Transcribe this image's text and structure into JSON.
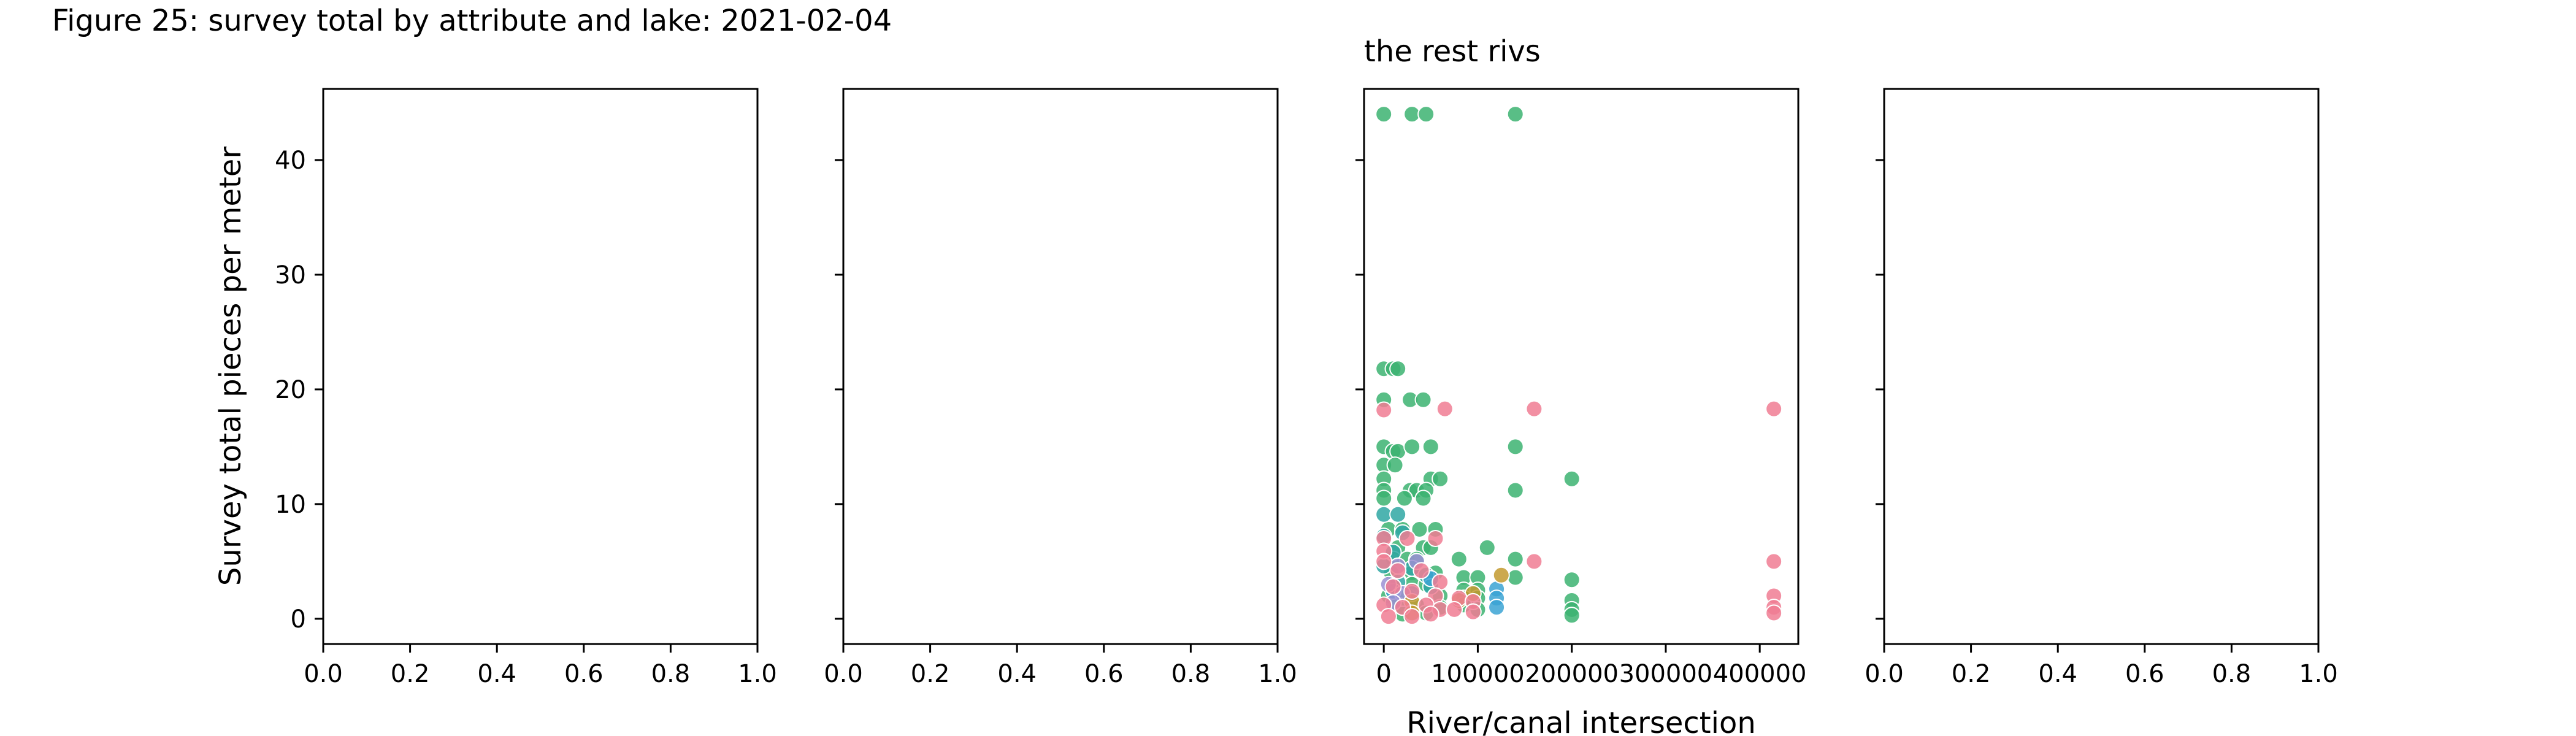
{
  "figure_title": "Figure 25: survey total by attribute and lake: 2021-02-04",
  "chart_data": [
    {
      "type": "scatter",
      "title": "",
      "xlabel": "",
      "ylabel": "Survey total pieces per meter",
      "xlim": [
        0,
        1
      ],
      "ylim": [
        -2.2,
        46.2
      ],
      "xticks": [
        "0.0",
        "0.2",
        "0.4",
        "0.6",
        "0.8",
        "1.0"
      ],
      "yticks": [
        "0",
        "10",
        "20",
        "30",
        "40"
      ],
      "grid": false,
      "series": []
    },
    {
      "type": "scatter",
      "title": "",
      "xlabel": "",
      "ylabel": "",
      "xlim": [
        0,
        1
      ],
      "ylim": [
        -2.2,
        46.2
      ],
      "xticks": [
        "0.0",
        "0.2",
        "0.4",
        "0.6",
        "0.8",
        "1.0"
      ],
      "yticks": [],
      "grid": false,
      "series": []
    },
    {
      "type": "scatter",
      "title": "the rest rivs",
      "xlabel": "River/canal intersection",
      "ylabel": "",
      "xlim": [
        -21000,
        441000
      ],
      "ylim": [
        -2.2,
        46.2
      ],
      "xticks": [
        "0",
        "100000",
        "200000",
        "300000",
        "400000"
      ],
      "xtick_values": [
        0,
        100000,
        200000,
        300000,
        400000
      ],
      "yticks": [],
      "grid": false,
      "series": [
        {
          "color": "#3cb371",
          "points": [
            [
              0,
              44
            ],
            [
              30000,
              44
            ],
            [
              45000,
              44
            ],
            [
              140000,
              44
            ],
            [
              0,
              21.8
            ],
            [
              10000,
              21.8
            ],
            [
              15000,
              21.8
            ],
            [
              0,
              19.1
            ],
            [
              28000,
              19.1
            ],
            [
              42000,
              19.1
            ],
            [
              0,
              15
            ],
            [
              10000,
              14.6
            ],
            [
              15000,
              14.6
            ],
            [
              30000,
              15
            ],
            [
              50000,
              15
            ],
            [
              140000,
              15
            ],
            [
              0,
              13.4
            ],
            [
              12000,
              13.4
            ],
            [
              0,
              12.2
            ],
            [
              50000,
              12.2
            ],
            [
              60000,
              12.2
            ],
            [
              200000,
              12.2
            ],
            [
              0,
              11.2
            ],
            [
              28000,
              11.2
            ],
            [
              35000,
              11.2
            ],
            [
              45000,
              11.2
            ],
            [
              140000,
              11.2
            ],
            [
              0,
              10.5
            ],
            [
              22000,
              10.5
            ],
            [
              42000,
              10.5
            ],
            [
              5000,
              7.8
            ],
            [
              20000,
              7.8
            ],
            [
              38000,
              7.8
            ],
            [
              55000,
              7.8
            ],
            [
              15000,
              6.2
            ],
            [
              42000,
              6.2
            ],
            [
              50000,
              6.2
            ],
            [
              110000,
              6.2
            ],
            [
              10000,
              5.2
            ],
            [
              25000,
              5.2
            ],
            [
              35000,
              5.2
            ],
            [
              80000,
              5.2
            ],
            [
              140000,
              5.2
            ],
            [
              8000,
              4.0
            ],
            [
              30000,
              4.0
            ],
            [
              55000,
              4.0
            ],
            [
              85000,
              3.6
            ],
            [
              100000,
              3.6
            ],
            [
              140000,
              3.6
            ],
            [
              200000,
              3.4
            ],
            [
              10000,
              3.0
            ],
            [
              30000,
              3.0
            ],
            [
              45000,
              3.0
            ],
            [
              85000,
              2.5
            ],
            [
              100000,
              2.5
            ],
            [
              5000,
              2.0
            ],
            [
              25000,
              2.0
            ],
            [
              60000,
              2.0
            ],
            [
              85000,
              1.8
            ],
            [
              100000,
              1.8
            ],
            [
              200000,
              1.6
            ],
            [
              15000,
              1.2
            ],
            [
              35000,
              1.2
            ],
            [
              60000,
              1.0
            ],
            [
              85000,
              1.2
            ],
            [
              100000,
              0.8
            ],
            [
              200000,
              0.8
            ],
            [
              20000,
              0.4
            ],
            [
              45000,
              0.5
            ],
            [
              200000,
              0.3
            ]
          ]
        },
        {
          "color": "#2fa7a3",
          "points": [
            [
              0,
              9.1
            ],
            [
              15000,
              9.1
            ],
            [
              0,
              7.2
            ],
            [
              20000,
              7.5
            ],
            [
              10000,
              5.8
            ],
            [
              0,
              4.6
            ],
            [
              30000,
              4.4
            ],
            [
              45000,
              3.8
            ],
            [
              15000,
              3.2
            ],
            [
              50000,
              2.8
            ]
          ]
        },
        {
          "color": "#3ba3d4",
          "points": [
            [
              120000,
              2.6
            ],
            [
              120000,
              1.8
            ],
            [
              120000,
              1.0
            ],
            [
              50000,
              3.5
            ],
            [
              30000,
              2.2
            ],
            [
              10000,
              2.4
            ]
          ]
        },
        {
          "color": "#9b8fd4",
          "points": [
            [
              15000,
              4.6
            ],
            [
              5000,
              3.0
            ],
            [
              35000,
              5.0
            ],
            [
              20000,
              2.2
            ],
            [
              10000,
              1.4
            ]
          ]
        },
        {
          "color": "#c39a2f",
          "points": [
            [
              30000,
              1.5
            ],
            [
              30000,
              0.5
            ],
            [
              125000,
              3.8
            ],
            [
              80000,
              1.6
            ],
            [
              95000,
              2.2
            ]
          ]
        },
        {
          "color": "#f07c93",
          "points": [
            [
              0,
              18.2
            ],
            [
              65000,
              18.3
            ],
            [
              160000,
              18.3
            ],
            [
              415000,
              18.3
            ],
            [
              0,
              7.0
            ],
            [
              25000,
              7.0
            ],
            [
              55000,
              7.0
            ],
            [
              0,
              5.9
            ],
            [
              0,
              5.0
            ],
            [
              160000,
              5.0
            ],
            [
              415000,
              5.0
            ],
            [
              15000,
              4.2
            ],
            [
              40000,
              4.2
            ],
            [
              60000,
              3.2
            ],
            [
              10000,
              2.8
            ],
            [
              30000,
              2.4
            ],
            [
              55000,
              2.0
            ],
            [
              415000,
              2.0
            ],
            [
              80000,
              1.8
            ],
            [
              95000,
              1.5
            ],
            [
              0,
              1.2
            ],
            [
              20000,
              1.0
            ],
            [
              45000,
              1.2
            ],
            [
              60000,
              0.8
            ],
            [
              75000,
              0.8
            ],
            [
              95000,
              0.6
            ],
            [
              415000,
              1.0
            ],
            [
              415000,
              0.5
            ],
            [
              5000,
              0.2
            ],
            [
              30000,
              0.2
            ],
            [
              50000,
              0.4
            ]
          ]
        }
      ]
    },
    {
      "type": "scatter",
      "title": "",
      "xlabel": "",
      "ylabel": "",
      "xlim": [
        0,
        1
      ],
      "ylim": [
        -2.2,
        46.2
      ],
      "xticks": [
        "0.0",
        "0.2",
        "0.4",
        "0.6",
        "0.8",
        "1.0"
      ],
      "yticks": [],
      "grid": false,
      "series": []
    }
  ]
}
